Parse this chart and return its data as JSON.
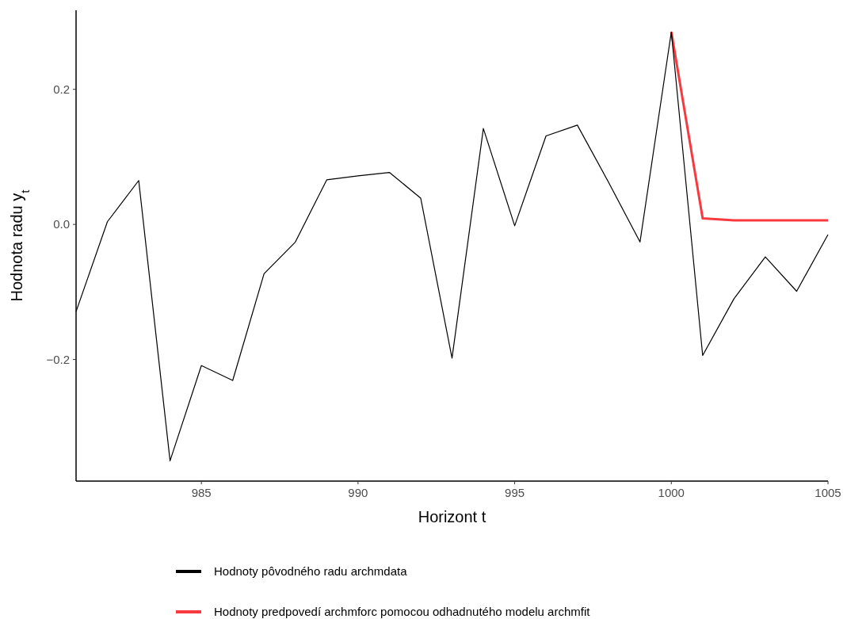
{
  "chart_data": {
    "type": "line",
    "xlabel": "Horizont t",
    "ylabel": "Hodnota radu y$_{t}$",
    "x": [
      981,
      982,
      983,
      984,
      985,
      986,
      987,
      988,
      989,
      990,
      991,
      992,
      993,
      994,
      995,
      996,
      997,
      998,
      999,
      1000,
      1001,
      1002,
      1003,
      1004,
      1005
    ],
    "series": [
      {
        "name": "Hodnoty pôvodného radu archmdata",
        "color": "#000000",
        "values": [
          -0.129,
          0.004,
          0.065,
          -0.35,
          -0.209,
          -0.231,
          -0.073,
          -0.026,
          0.066,
          0.072,
          0.077,
          0.039,
          -0.198,
          0.142,
          -0.002,
          0.131,
          0.147,
          0.062,
          -0.026,
          0.285,
          -0.194,
          -0.11,
          -0.048,
          -0.099,
          -0.015
        ]
      },
      {
        "name": "Hodnoty predpovedí archmforc pomocou odhadnutého modelu archmfit",
        "color": "#f8393d",
        "x": [
          1000,
          1001,
          1002,
          1003,
          1004,
          1005
        ],
        "values": [
          0.285,
          0.009,
          0.006,
          0.006,
          0.006,
          0.006
        ]
      }
    ],
    "xlim": [
      981,
      1005
    ],
    "ylim": [
      -0.38,
      0.317
    ],
    "xticks": [
      985,
      990,
      995,
      1000,
      1005
    ],
    "yticks": [
      {
        "value": -0.2,
        "label": "−0.2"
      },
      {
        "value": 0,
        "label": "0.0"
      },
      {
        "value": 0.2,
        "label": "0.2"
      }
    ],
    "grid": false,
    "legend": "bottom",
    "marker": "none",
    "line_style": "solid"
  }
}
